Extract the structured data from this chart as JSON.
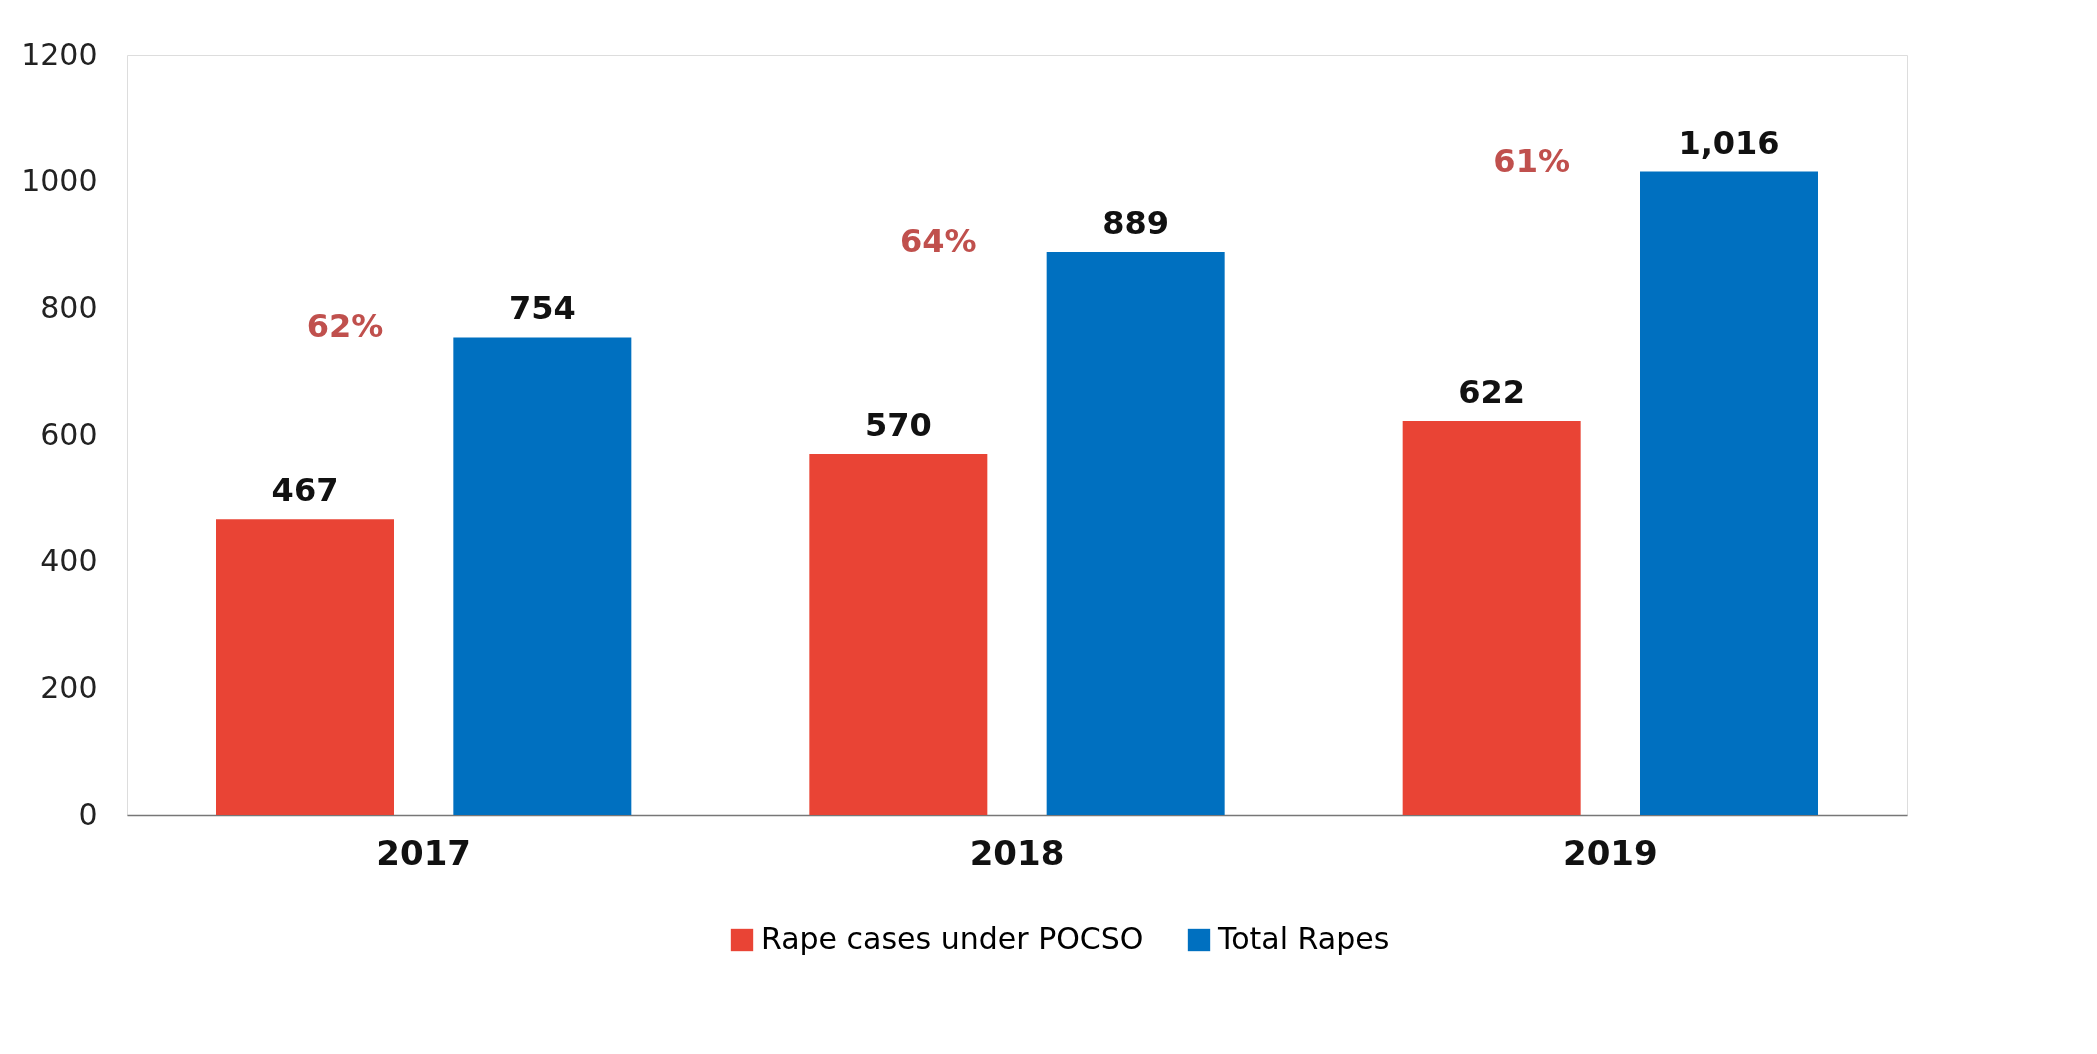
{
  "chart_data": {
    "type": "bar",
    "categories": [
      "2017",
      "2018",
      "2019"
    ],
    "series": [
      {
        "name": "Rape cases under POCSO",
        "color": "#e94435",
        "values": [
          467,
          570,
          622
        ],
        "value_labels": [
          "467",
          "570",
          "622"
        ]
      },
      {
        "name": "Total Rapes",
        "color": "#0070c0",
        "values": [
          754,
          889,
          1016
        ],
        "value_labels": [
          "754",
          "889",
          "1,016"
        ]
      }
    ],
    "ylim": [
      0,
      1200
    ],
    "yticks": [
      0,
      200,
      400,
      600,
      800,
      1000,
      1200
    ],
    "grid": false,
    "legend": "bottom",
    "annotations": [
      "62%",
      "64%",
      "61%"
    ]
  }
}
